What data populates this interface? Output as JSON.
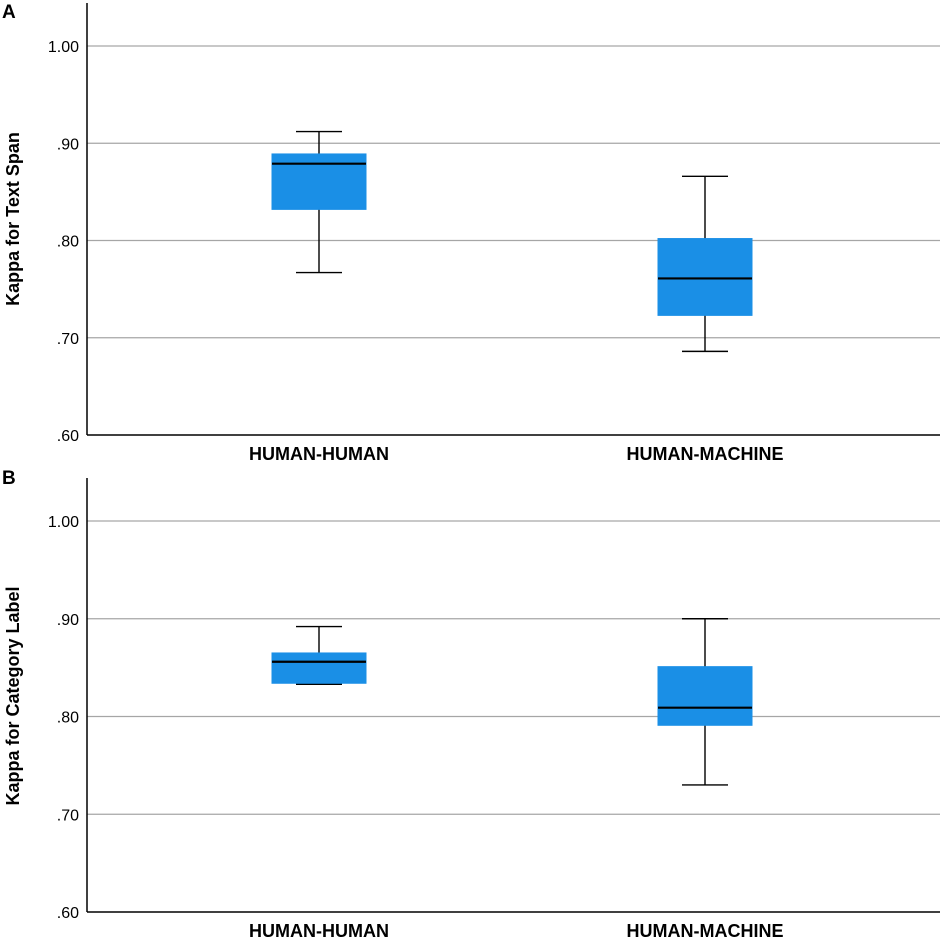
{
  "colors": {
    "box_fill": "#1a8fe6",
    "box_stroke": "#1a8fe6",
    "grid": "#a6a6a6"
  },
  "chart_data": [
    {
      "type": "boxplot",
      "panel_label": "A",
      "ylabel": "Kappa for Text Span",
      "ylim": [
        0.6,
        1.04
      ],
      "yticks": [
        0.6,
        0.7,
        0.8,
        0.9,
        1.0
      ],
      "ytick_labels": [
        ".60",
        ".70",
        ".80",
        ".90",
        "1.00"
      ],
      "categories": [
        "HUMAN-HUMAN",
        "HUMAN-MACHINE"
      ],
      "boxes": [
        {
          "whisker_low": 0.767,
          "q1": 0.832,
          "median": 0.879,
          "q3": 0.889,
          "whisker_high": 0.912
        },
        {
          "whisker_low": 0.686,
          "q1": 0.723,
          "median": 0.761,
          "q3": 0.802,
          "whisker_high": 0.866
        }
      ]
    },
    {
      "type": "boxplot",
      "panel_label": "B",
      "ylabel": "Kappa for Category Label",
      "ylim": [
        0.6,
        1.04
      ],
      "yticks": [
        0.6,
        0.7,
        0.8,
        0.9,
        1.0
      ],
      "ytick_labels": [
        ".60",
        ".70",
        ".80",
        ".90",
        "1.00"
      ],
      "categories": [
        "HUMAN-HUMAN",
        "HUMAN-MACHINE"
      ],
      "boxes": [
        {
          "whisker_low": 0.833,
          "q1": 0.834,
          "median": 0.856,
          "q3": 0.865,
          "whisker_high": 0.892
        },
        {
          "whisker_low": 0.73,
          "q1": 0.791,
          "median": 0.809,
          "q3": 0.851,
          "whisker_high": 0.9
        }
      ]
    }
  ]
}
